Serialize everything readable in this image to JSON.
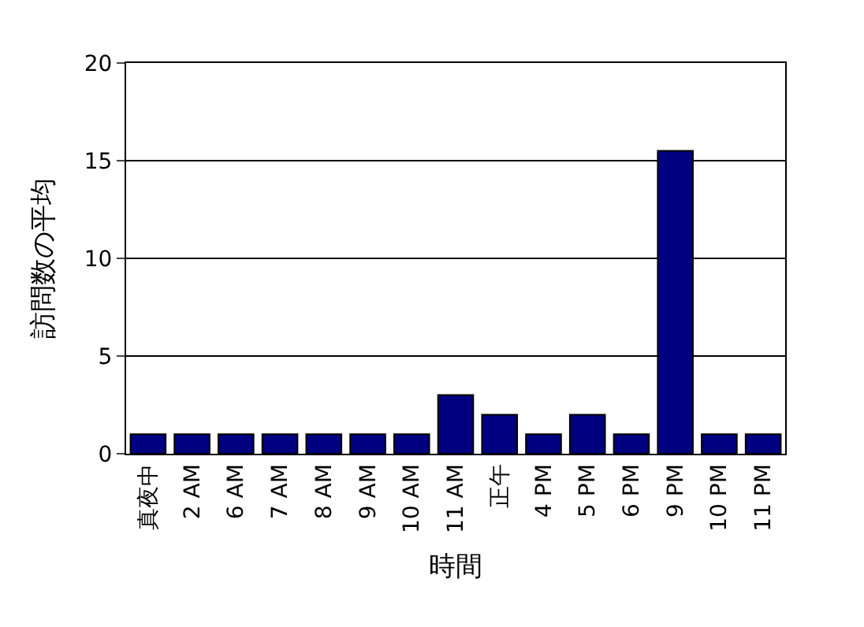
{
  "chart_data": {
    "type": "bar",
    "xlabel": "時間",
    "ylabel": "訪問数の平均",
    "categories": [
      "真夜中",
      "2 AM",
      "6 AM",
      "7 AM",
      "8 AM",
      "9 AM",
      "10 AM",
      "11 AM",
      "正午",
      "4 PM",
      "5 PM",
      "6 PM",
      "9 PM",
      "10 PM",
      "11 PM"
    ],
    "values": [
      1,
      1,
      1,
      1,
      1,
      1,
      1,
      3,
      2,
      1,
      2,
      1,
      15.5,
      1,
      1
    ],
    "color": "#000080",
    "ylim": [
      0,
      20
    ],
    "yticks": [
      0,
      5,
      10,
      15,
      20
    ],
    "grid": "y"
  }
}
